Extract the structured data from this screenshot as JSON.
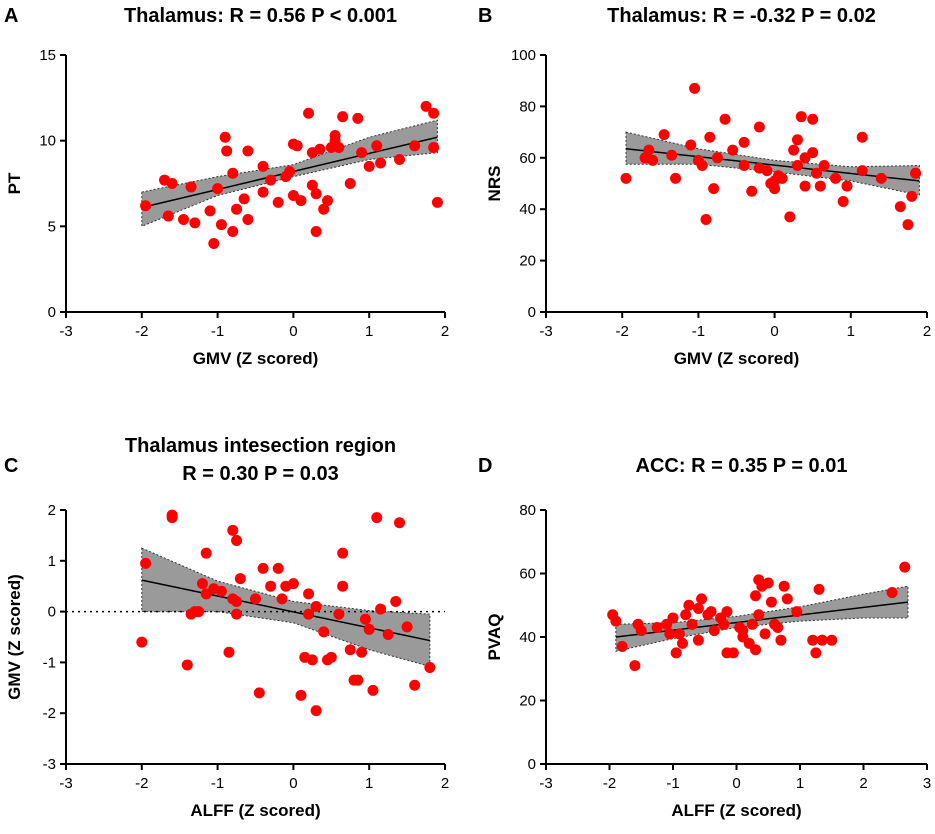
{
  "chart_data": [
    {
      "type": "scatter",
      "panel_label": "A",
      "title": "Thalamus: R = 0.56 P < 0.001",
      "title_lines": [
        "Thalamus: R = 0.56 P < 0.001"
      ],
      "xlabel": "GMV (Z scored)",
      "ylabel": "PT",
      "xlim": [
        -3,
        2
      ],
      "ylim": [
        0,
        15
      ],
      "xticks": [
        -3,
        -2,
        -1,
        0,
        1,
        2
      ],
      "yticks": [
        0,
        5,
        10,
        15
      ],
      "zero_line": false,
      "fit": {
        "x": [
          -2,
          1.9
        ],
        "y": [
          6.1,
          10.2
        ]
      },
      "ci_band": {
        "x": [
          -2,
          -1,
          0,
          1,
          1.9
        ],
        "lower": [
          5.0,
          6.8,
          7.9,
          8.9,
          9.3
        ],
        "upper": [
          7.0,
          7.9,
          8.6,
          10.2,
          11.2
        ]
      },
      "points": [
        [
          -1.95,
          6.2
        ],
        [
          -1.7,
          7.7
        ],
        [
          -1.6,
          7.5
        ],
        [
          -1.65,
          5.6
        ],
        [
          -1.45,
          5.4
        ],
        [
          -1.35,
          7.3
        ],
        [
          -1.3,
          5.2
        ],
        [
          -1.1,
          5.9
        ],
        [
          -1.05,
          4.0
        ],
        [
          -0.95,
          5.1
        ],
        [
          -1.0,
          7.2
        ],
        [
          -0.9,
          10.2
        ],
        [
          -0.88,
          9.4
        ],
        [
          -0.8,
          8.1
        ],
        [
          -0.8,
          4.7
        ],
        [
          -0.75,
          6.0
        ],
        [
          -0.65,
          6.6
        ],
        [
          -0.6,
          5.4
        ],
        [
          -0.6,
          9.4
        ],
        [
          -0.4,
          7.0
        ],
        [
          -0.4,
          8.5
        ],
        [
          -0.3,
          7.7
        ],
        [
          -0.2,
          6.4
        ],
        [
          -0.1,
          7.9
        ],
        [
          -0.05,
          8.2
        ],
        [
          0.0,
          6.8
        ],
        [
          0.0,
          9.8
        ],
        [
          0.05,
          9.7
        ],
        [
          0.1,
          6.5
        ],
        [
          0.2,
          11.6
        ],
        [
          0.25,
          7.4
        ],
        [
          0.25,
          9.3
        ],
        [
          0.3,
          4.7
        ],
        [
          0.3,
          6.9
        ],
        [
          0.35,
          9.5
        ],
        [
          0.4,
          6.0
        ],
        [
          0.45,
          6.5
        ],
        [
          0.5,
          9.6
        ],
        [
          0.55,
          10.3
        ],
        [
          0.55,
          10.0
        ],
        [
          0.6,
          9.6
        ],
        [
          0.65,
          11.4
        ],
        [
          0.75,
          7.5
        ],
        [
          0.85,
          11.3
        ],
        [
          0.9,
          9.3
        ],
        [
          1.0,
          8.5
        ],
        [
          1.1,
          9.7
        ],
        [
          1.15,
          8.7
        ],
        [
          1.4,
          8.9
        ],
        [
          1.6,
          9.7
        ],
        [
          1.75,
          12.0
        ],
        [
          1.85,
          11.6
        ],
        [
          1.85,
          9.6
        ],
        [
          1.9,
          6.4
        ]
      ]
    },
    {
      "type": "scatter",
      "panel_label": "B",
      "title": "Thalamus: R = -0.32 P = 0.02",
      "title_lines": [
        "Thalamus: R = -0.32 P = 0.02"
      ],
      "xlabel": "GMV (Z scored)",
      "ylabel": "NRS",
      "xlim": [
        -3,
        2
      ],
      "ylim": [
        0,
        100
      ],
      "xticks": [
        -3,
        -2,
        -1,
        0,
        1,
        2
      ],
      "yticks": [
        0,
        20,
        40,
        60,
        80,
        100
      ],
      "zero_line": false,
      "fit": {
        "x": [
          -1.95,
          1.9
        ],
        "y": [
          63.5,
          51.0
        ]
      },
      "ci_band": {
        "x": [
          -1.95,
          -1,
          0,
          1,
          1.9
        ],
        "lower": [
          57.5,
          57.5,
          54.5,
          51.0,
          45.5
        ],
        "upper": [
          70.0,
          63.5,
          59.0,
          56.5,
          57.0
        ]
      },
      "points": [
        [
          -1.95,
          52
        ],
        [
          -1.7,
          60
        ],
        [
          -1.65,
          63
        ],
        [
          -1.6,
          59
        ],
        [
          -1.45,
          69
        ],
        [
          -1.35,
          61
        ],
        [
          -1.3,
          52
        ],
        [
          -1.1,
          65
        ],
        [
          -1.05,
          87
        ],
        [
          -1.0,
          59
        ],
        [
          -0.95,
          57
        ],
        [
          -0.9,
          36
        ],
        [
          -0.85,
          68
        ],
        [
          -0.8,
          48
        ],
        [
          -0.75,
          60
        ],
        [
          -0.65,
          75
        ],
        [
          -0.55,
          63
        ],
        [
          -0.4,
          66
        ],
        [
          -0.4,
          57
        ],
        [
          -0.3,
          47
        ],
        [
          -0.2,
          72
        ],
        [
          -0.2,
          56
        ],
        [
          -0.1,
          55
        ],
        [
          -0.05,
          50
        ],
        [
          0.0,
          48
        ],
        [
          0.0,
          51
        ],
        [
          0.05,
          53
        ],
        [
          0.1,
          52
        ],
        [
          0.2,
          37
        ],
        [
          0.25,
          63
        ],
        [
          0.3,
          67
        ],
        [
          0.3,
          57
        ],
        [
          0.35,
          76
        ],
        [
          0.4,
          49
        ],
        [
          0.4,
          60
        ],
        [
          0.5,
          75
        ],
        [
          0.5,
          62
        ],
        [
          0.55,
          54
        ],
        [
          0.6,
          49
        ],
        [
          0.65,
          57
        ],
        [
          0.8,
          52
        ],
        [
          0.9,
          43
        ],
        [
          0.95,
          49
        ],
        [
          1.15,
          68
        ],
        [
          1.15,
          55
        ],
        [
          1.4,
          52
        ],
        [
          1.65,
          41
        ],
        [
          1.75,
          34
        ],
        [
          1.8,
          45
        ],
        [
          1.85,
          54
        ]
      ]
    },
    {
      "type": "scatter",
      "panel_label": "C",
      "title": "Thalamus intesection region R = 0.30 P = 0.03",
      "title_lines": [
        "Thalamus intesection region",
        "R = 0.30 P = 0.03"
      ],
      "xlabel": "ALFF (Z scored)",
      "ylabel": "GMV (Z scored)",
      "xlim": [
        -3,
        2
      ],
      "ylim": [
        -3,
        2
      ],
      "xticks": [
        -3,
        -2,
        -1,
        0,
        1,
        2
      ],
      "yticks": [
        -3,
        -2,
        -1,
        0,
        1,
        2
      ],
      "zero_line": true,
      "fit": {
        "x": [
          -2,
          1.8
        ],
        "y": [
          0.62,
          -0.57
        ]
      },
      "ci_band": {
        "x": [
          -2,
          -1,
          0,
          1,
          1.8
        ],
        "lower": [
          0.0,
          0.0,
          -0.22,
          -0.75,
          -1.08
        ],
        "upper": [
          1.25,
          0.6,
          0.2,
          0.02,
          -0.05
        ]
      },
      "points": [
        [
          -2.0,
          -0.6
        ],
        [
          -1.95,
          0.95
        ],
        [
          -1.6,
          1.9
        ],
        [
          -1.6,
          1.85
        ],
        [
          -1.4,
          -1.05
        ],
        [
          -1.35,
          -0.05
        ],
        [
          -1.3,
          0.0
        ],
        [
          -1.25,
          0.0
        ],
        [
          -1.2,
          0.55
        ],
        [
          -1.15,
          0.35
        ],
        [
          -1.15,
          1.15
        ],
        [
          -1.05,
          0.45
        ],
        [
          -0.95,
          0.4
        ],
        [
          -0.85,
          -0.8
        ],
        [
          -0.8,
          1.6
        ],
        [
          -0.8,
          0.25
        ],
        [
          -0.75,
          1.4
        ],
        [
          -0.75,
          0.2
        ],
        [
          -0.75,
          -0.05
        ],
        [
          -0.7,
          0.65
        ],
        [
          -0.5,
          0.25
        ],
        [
          -0.45,
          -1.6
        ],
        [
          -0.4,
          0.85
        ],
        [
          -0.3,
          0.5
        ],
        [
          -0.2,
          0.85
        ],
        [
          -0.15,
          0.25
        ],
        [
          -0.1,
          0.5
        ],
        [
          0.0,
          0.55
        ],
        [
          0.1,
          -1.65
        ],
        [
          0.15,
          -0.9
        ],
        [
          0.2,
          -0.05
        ],
        [
          0.2,
          0.35
        ],
        [
          0.25,
          -0.95
        ],
        [
          0.3,
          0.1
        ],
        [
          0.3,
          -1.95
        ],
        [
          0.4,
          -0.4
        ],
        [
          0.45,
          -0.95
        ],
        [
          0.5,
          -0.9
        ],
        [
          0.6,
          -0.05
        ],
        [
          0.65,
          0.5
        ],
        [
          0.65,
          1.15
        ],
        [
          0.75,
          -0.75
        ],
        [
          0.8,
          -1.35
        ],
        [
          0.85,
          -1.35
        ],
        [
          0.9,
          -0.8
        ],
        [
          0.95,
          -0.15
        ],
        [
          1.0,
          -0.35
        ],
        [
          1.05,
          -1.55
        ],
        [
          1.1,
          1.85
        ],
        [
          1.15,
          0.05
        ],
        [
          1.25,
          -0.45
        ],
        [
          1.35,
          0.2
        ],
        [
          1.4,
          1.75
        ],
        [
          1.5,
          -0.3
        ],
        [
          1.6,
          -1.45
        ],
        [
          1.8,
          -1.1
        ]
      ]
    },
    {
      "type": "scatter",
      "panel_label": "D",
      "title": "ACC: R = 0.35 P = 0.01",
      "title_lines": [
        "ACC: R = 0.35 P = 0.01"
      ],
      "xlabel": "ALFF (Z scored)",
      "ylabel": "PVAQ",
      "xlim": [
        -3,
        3
      ],
      "ylim": [
        0,
        80
      ],
      "xticks": [
        -3,
        -2,
        -1,
        0,
        1,
        2,
        3
      ],
      "yticks": [
        0,
        20,
        40,
        60,
        80
      ],
      "zero_line": false,
      "fit": {
        "x": [
          -1.9,
          2.7
        ],
        "y": [
          40.0,
          51.0
        ]
      },
      "ci_band": {
        "x": [
          -1.9,
          -1,
          0,
          1,
          2,
          2.7
        ],
        "lower": [
          35.5,
          39.5,
          43.0,
          45.0,
          46.0,
          46.0
        ],
        "upper": [
          44.0,
          44.5,
          46.5,
          49.5,
          53.5,
          56.0
        ]
      },
      "points": [
        [
          -1.95,
          47
        ],
        [
          -1.9,
          45
        ],
        [
          -1.8,
          37
        ],
        [
          -1.55,
          44
        ],
        [
          -1.6,
          31
        ],
        [
          -1.5,
          42
        ],
        [
          -1.25,
          43
        ],
        [
          -1.1,
          44
        ],
        [
          -1.05,
          41
        ],
        [
          -1.0,
          46
        ],
        [
          -0.95,
          35
        ],
        [
          -0.9,
          41
        ],
        [
          -0.85,
          38
        ],
        [
          -0.8,
          47
        ],
        [
          -0.75,
          50
        ],
        [
          -0.7,
          44
        ],
        [
          -0.6,
          39
        ],
        [
          -0.6,
          49
        ],
        [
          -0.55,
          52
        ],
        [
          -0.45,
          47
        ],
        [
          -0.4,
          48
        ],
        [
          -0.35,
          42
        ],
        [
          -0.25,
          46
        ],
        [
          -0.2,
          44
        ],
        [
          -0.15,
          48
        ],
        [
          -0.15,
          35
        ],
        [
          -0.05,
          35
        ],
        [
          0.05,
          43
        ],
        [
          0.1,
          42
        ],
        [
          0.1,
          40
        ],
        [
          0.2,
          38
        ],
        [
          0.25,
          44
        ],
        [
          0.3,
          53
        ],
        [
          0.3,
          36
        ],
        [
          0.35,
          47
        ],
        [
          0.35,
          58
        ],
        [
          0.4,
          56
        ],
        [
          0.45,
          41
        ],
        [
          0.5,
          57
        ],
        [
          0.55,
          51
        ],
        [
          0.6,
          44
        ],
        [
          0.65,
          43
        ],
        [
          0.7,
          39
        ],
        [
          0.75,
          56
        ],
        [
          0.8,
          52
        ],
        [
          0.95,
          48
        ],
        [
          1.2,
          39
        ],
        [
          1.25,
          35
        ],
        [
          1.3,
          55
        ],
        [
          1.35,
          39
        ],
        [
          1.5,
          39
        ],
        [
          2.45,
          54
        ],
        [
          2.65,
          62
        ]
      ]
    }
  ]
}
